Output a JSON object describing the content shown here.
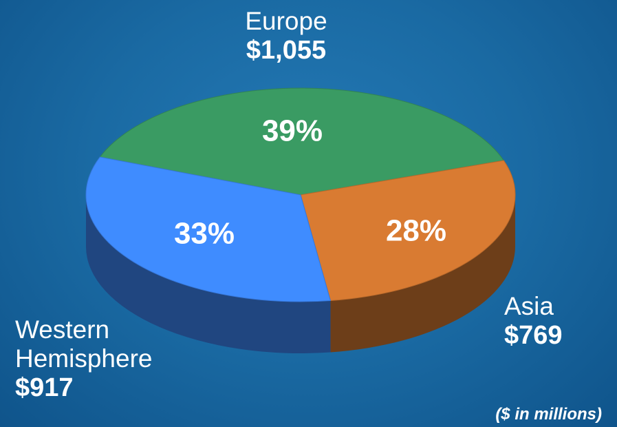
{
  "chart_data": {
    "type": "pie",
    "categories": [
      "Europe",
      "Asia",
      "Western Hemisphere"
    ],
    "values": [
      39,
      28,
      33
    ],
    "value_labels": [
      "39%",
      "28%",
      "33%"
    ],
    "amount_labels": [
      "$1,055",
      "$769",
      "$917"
    ],
    "colors": [
      "#3a9b63",
      "#d97b32",
      "#3f8cff"
    ],
    "note": "($ in millions)"
  }
}
